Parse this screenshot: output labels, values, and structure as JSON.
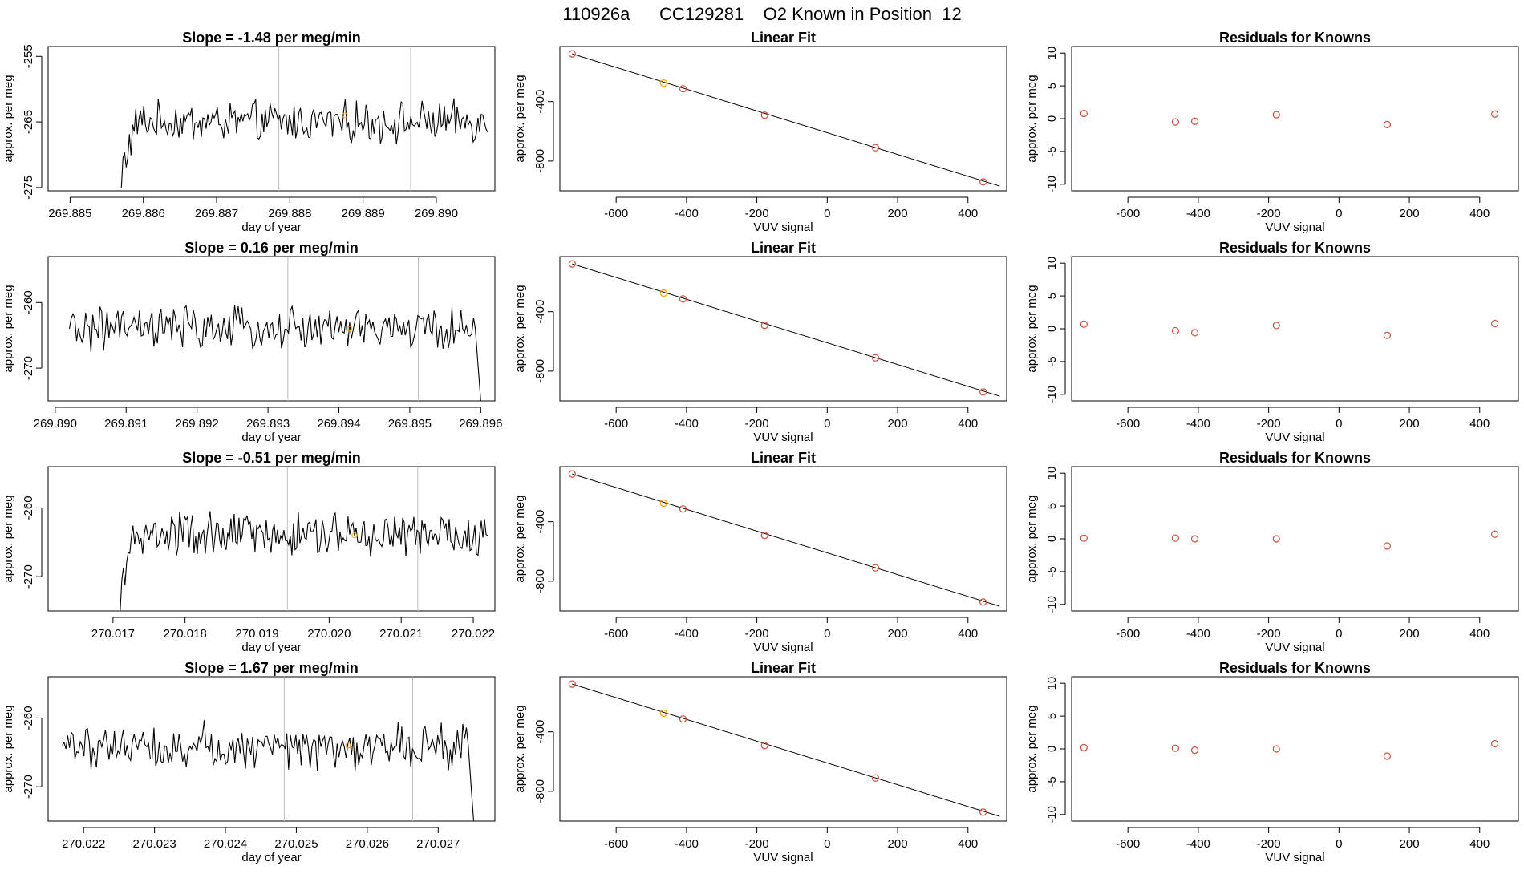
{
  "page_title": "110926a      CC129281    O2 Known in Position  12",
  "colors": {
    "line": "#000000",
    "marker": "#cd4f39",
    "highlight": "#ffa500",
    "vline": "#bebebe"
  },
  "chart_data": [
    {
      "type": "line",
      "row": 1,
      "column": "time-series",
      "title": "Slope =  -1.48  per meg/min",
      "xlabel": "day of year",
      "ylabel": "approx. per meg",
      "xlim": [
        269.8847,
        269.8908
      ],
      "ylim": [
        -275.5,
        -253.5
      ],
      "xticks": [
        269.885,
        269.886,
        269.887,
        269.888,
        269.889,
        269.89
      ],
      "xtick_labels": [
        "269.885",
        "269.886",
        "269.887",
        "269.888",
        "269.889",
        "269.890"
      ],
      "yticks": [
        -275,
        -265,
        -255
      ],
      "ytick_labels": [
        "-275",
        "-265",
        "-255"
      ],
      "series_x_range": [
        269.8857,
        269.8907
      ],
      "series_start": -275,
      "series_mean": -265,
      "series_noise": 2.4,
      "series_ramp_from": -272,
      "series_ramp_points": 10,
      "vlines": [
        269.88785,
        269.88965
      ],
      "highlight_point": {
        "x": 269.88875,
        "y": -264
      }
    },
    {
      "type": "scatter",
      "row": 1,
      "column": "linear-fit",
      "title": "Linear Fit",
      "xlabel": "VUV signal",
      "ylabel": "approx. per meg",
      "xlim": [
        -760,
        510
      ],
      "ylim": [
        -1000,
        -30
      ],
      "xticks": [
        -600,
        -400,
        -200,
        0,
        200,
        400
      ],
      "xtick_labels": [
        "-600",
        "-400",
        "-200",
        "0",
        "200",
        "400"
      ],
      "yticks": [
        -400,
        -800
      ],
      "ytick_labels": [
        "-400",
        "-800"
      ],
      "x": [
        -725,
        -465,
        -410,
        -178,
        137,
        443
      ],
      "y": [
        -79,
        -275,
        -314,
        -492,
        -710,
        -940
      ],
      "highlight_index": 1,
      "fit_line": {
        "x": [
          -725,
          490
        ],
        "y": [
          -79,
          -968
        ]
      }
    },
    {
      "type": "scatter",
      "row": 1,
      "column": "residuals",
      "title": "Residuals for Knowns",
      "xlabel": "VUV signal",
      "ylabel": "approx. per meg",
      "xlim": [
        -760,
        510
      ],
      "ylim": [
        -11,
        11
      ],
      "xticks": [
        -600,
        -400,
        -200,
        0,
        200,
        400
      ],
      "xtick_labels": [
        "-600",
        "-400",
        "-200",
        "0",
        "200",
        "400"
      ],
      "yticks": [
        -10,
        -5,
        0,
        5,
        10
      ],
      "ytick_labels": [
        "-10",
        "-5",
        "0",
        "5",
        "10"
      ],
      "x": [
        -725,
        -465,
        -410,
        -178,
        137,
        443
      ],
      "y": [
        0.8,
        -0.5,
        -0.4,
        0.6,
        -0.9,
        0.7
      ]
    },
    {
      "type": "line",
      "row": 2,
      "column": "time-series",
      "title": "Slope =  0.16  per meg/min",
      "xlabel": "day of year",
      "ylabel": "approx. per meg",
      "xlim": [
        269.8899,
        269.8962
      ],
      "ylim": [
        -275,
        -253
      ],
      "xticks": [
        269.89,
        269.891,
        269.892,
        269.893,
        269.894,
        269.895,
        269.896
      ],
      "xtick_labels": [
        "269.890",
        "269.891",
        "269.892",
        "269.893",
        "269.894",
        "269.895",
        "269.896"
      ],
      "yticks": [
        -270,
        -260
      ],
      "ytick_labels": [
        "-270",
        "-260"
      ],
      "series_x_range": [
        269.8902,
        269.896
      ],
      "series_start": -264,
      "series_mean": -264,
      "series_noise": 2.6,
      "series_ramp_from": -264,
      "series_ramp_points": 0,
      "series_drop_end": -275,
      "vlines": [
        269.89328,
        269.89512
      ],
      "highlight_point": {
        "x": 269.89415,
        "y": -264
      }
    },
    {
      "type": "scatter",
      "row": 2,
      "column": "linear-fit",
      "title": "Linear Fit",
      "xlabel": "VUV signal",
      "ylabel": "approx. per meg",
      "xlim": [
        -760,
        510
      ],
      "ylim": [
        -1000,
        -30
      ],
      "xticks": [
        -600,
        -400,
        -200,
        0,
        200,
        400
      ],
      "xtick_labels": [
        "-600",
        "-400",
        "-200",
        "0",
        "200",
        "400"
      ],
      "yticks": [
        -400,
        -800
      ],
      "ytick_labels": [
        "-400",
        "-800"
      ],
      "x": [
        -725,
        -465,
        -410,
        -178,
        137,
        443
      ],
      "y": [
        -79,
        -275,
        -314,
        -492,
        -710,
        -940
      ],
      "highlight_index": 1,
      "fit_line": {
        "x": [
          -725,
          490
        ],
        "y": [
          -79,
          -968
        ]
      }
    },
    {
      "type": "scatter",
      "row": 2,
      "column": "residuals",
      "title": "Residuals for Knowns",
      "xlabel": "VUV signal",
      "ylabel": "approx. per meg",
      "xlim": [
        -760,
        510
      ],
      "ylim": [
        -11,
        11
      ],
      "xticks": [
        -600,
        -400,
        -200,
        0,
        200,
        400
      ],
      "xtick_labels": [
        "-600",
        "-400",
        "-200",
        "0",
        "200",
        "400"
      ],
      "yticks": [
        -10,
        -5,
        0,
        5,
        10
      ],
      "ytick_labels": [
        "-10",
        "-5",
        "0",
        "5",
        "10"
      ],
      "x": [
        -725,
        -465,
        -410,
        -178,
        137,
        443
      ],
      "y": [
        0.7,
        -0.3,
        -0.6,
        0.5,
        -1.0,
        0.8
      ]
    },
    {
      "type": "line",
      "row": 3,
      "column": "time-series",
      "title": "Slope =  -0.51  per meg/min",
      "xlabel": "day of year",
      "ylabel": "approx. per meg",
      "xlim": [
        270.0161,
        270.0223
      ],
      "ylim": [
        -275,
        -254
      ],
      "xticks": [
        270.017,
        270.018,
        270.019,
        270.02,
        270.021,
        270.022
      ],
      "xtick_labels": [
        "270.017",
        "270.018",
        "270.019",
        "270.020",
        "270.021",
        "270.022"
      ],
      "yticks": [
        -270,
        -260
      ],
      "ytick_labels": [
        "-270",
        "-260"
      ],
      "series_x_range": [
        270.0171,
        270.0222
      ],
      "series_start": -275,
      "series_mean": -264,
      "series_noise": 2.6,
      "series_ramp_from": -271,
      "series_ramp_points": 10,
      "vlines": [
        270.01942,
        270.02123
      ],
      "highlight_point": {
        "x": 270.02035,
        "y": -264
      }
    },
    {
      "type": "scatter",
      "row": 3,
      "column": "linear-fit",
      "title": "Linear Fit",
      "xlabel": "VUV signal",
      "ylabel": "approx. per meg",
      "xlim": [
        -760,
        510
      ],
      "ylim": [
        -1000,
        -30
      ],
      "xticks": [
        -600,
        -400,
        -200,
        0,
        200,
        400
      ],
      "xtick_labels": [
        "-600",
        "-400",
        "-200",
        "0",
        "200",
        "400"
      ],
      "yticks": [
        -400,
        -800
      ],
      "ytick_labels": [
        "-400",
        "-800"
      ],
      "x": [
        -725,
        -465,
        -410,
        -178,
        137,
        443
      ],
      "y": [
        -79,
        -275,
        -314,
        -492,
        -710,
        -940
      ],
      "highlight_index": 1,
      "fit_line": {
        "x": [
          -725,
          490
        ],
        "y": [
          -79,
          -968
        ]
      }
    },
    {
      "type": "scatter",
      "row": 3,
      "column": "residuals",
      "title": "Residuals for Knowns",
      "xlabel": "VUV signal",
      "ylabel": "approx. per meg",
      "xlim": [
        -760,
        510
      ],
      "ylim": [
        -11,
        11
      ],
      "xticks": [
        -600,
        -400,
        -200,
        0,
        200,
        400
      ],
      "xtick_labels": [
        "-600",
        "-400",
        "-200",
        "0",
        "200",
        "400"
      ],
      "yticks": [
        -10,
        -5,
        0,
        5,
        10
      ],
      "ytick_labels": [
        "-10",
        "-5",
        "0",
        "5",
        "10"
      ],
      "x": [
        -725,
        -465,
        -410,
        -178,
        137,
        443
      ],
      "y": [
        0.1,
        0.1,
        0.0,
        0.0,
        -1.1,
        0.7
      ]
    },
    {
      "type": "line",
      "row": 4,
      "column": "time-series",
      "title": "Slope =  1.67  per meg/min",
      "xlabel": "day of year",
      "ylabel": "approx. per meg",
      "xlim": [
        270.0215,
        270.0278
      ],
      "ylim": [
        -275,
        -254
      ],
      "xticks": [
        270.022,
        270.023,
        270.024,
        270.025,
        270.026,
        270.027
      ],
      "xtick_labels": [
        "270.022",
        "270.023",
        "270.024",
        "270.025",
        "270.026",
        "270.027"
      ],
      "yticks": [
        -270,
        -260
      ],
      "ytick_labels": [
        "-270",
        "-260"
      ],
      "series_x_range": [
        270.0217,
        270.0275
      ],
      "series_start": -264,
      "series_mean": -264,
      "series_noise": 2.6,
      "series_ramp_from": -264,
      "series_ramp_points": 0,
      "series_drop_end": -275,
      "vlines": [
        270.02483,
        270.02664
      ],
      "highlight_point": {
        "x": 270.02573,
        "y": -264
      }
    },
    {
      "type": "scatter",
      "row": 4,
      "column": "linear-fit",
      "title": "Linear Fit",
      "xlabel": "VUV signal",
      "ylabel": "approx. per meg",
      "xlim": [
        -760,
        510
      ],
      "ylim": [
        -1000,
        -30
      ],
      "xticks": [
        -600,
        -400,
        -200,
        0,
        200,
        400
      ],
      "xtick_labels": [
        "-600",
        "-400",
        "-200",
        "0",
        "200",
        "400"
      ],
      "yticks": [
        -400,
        -800
      ],
      "ytick_labels": [
        "-400",
        "-800"
      ],
      "x": [
        -725,
        -465,
        -410,
        -178,
        137,
        443
      ],
      "y": [
        -79,
        -275,
        -314,
        -492,
        -710,
        -940
      ],
      "highlight_index": 1,
      "fit_line": {
        "x": [
          -725,
          490
        ],
        "y": [
          -79,
          -968
        ]
      }
    },
    {
      "type": "scatter",
      "row": 4,
      "column": "residuals",
      "title": "Residuals for Knowns",
      "xlabel": "VUV signal",
      "ylabel": "approx. per meg",
      "xlim": [
        -760,
        510
      ],
      "ylim": [
        -11,
        11
      ],
      "xticks": [
        -600,
        -400,
        -200,
        0,
        200,
        400
      ],
      "xtick_labels": [
        "-600",
        "-400",
        "-200",
        "0",
        "200",
        "400"
      ],
      "yticks": [
        -10,
        -5,
        0,
        5,
        10
      ],
      "ytick_labels": [
        "-10",
        "-5",
        "0",
        "5",
        "10"
      ],
      "x": [
        -725,
        -465,
        -410,
        -178,
        137,
        443
      ],
      "y": [
        0.2,
        0.1,
        -0.2,
        0.0,
        -1.1,
        0.8
      ]
    }
  ]
}
